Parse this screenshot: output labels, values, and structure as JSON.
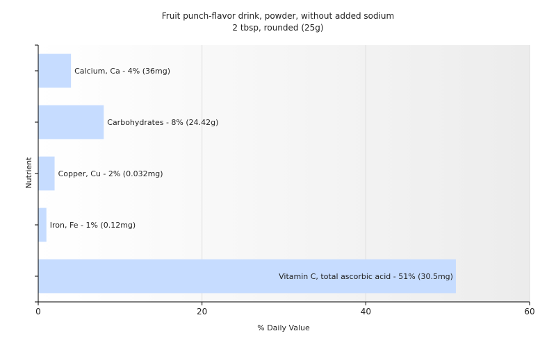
{
  "chart_data": {
    "type": "bar",
    "orientation": "horizontal",
    "title": "Fruit punch-flavor drink, powder, without added sodium",
    "subtitle": "2 tbsp, rounded (25g)",
    "xlabel": "% Daily Value",
    "ylabel": "Nutrient",
    "xlim": [
      0,
      60
    ],
    "xticks": [
      "0",
      "20",
      "40",
      "60"
    ],
    "grid": true,
    "categories": [
      "Calcium, Ca",
      "Carbohydrates",
      "Copper, Cu",
      "Iron, Fe",
      "Vitamin C, total ascorbic acid"
    ],
    "values": [
      4,
      8,
      2,
      1,
      51
    ],
    "data_labels": [
      "Calcium, Ca - 4% (36mg)",
      "Carbohydrates - 8% (24.42g)",
      "Copper, Cu - 2% (0.032mg)",
      "Iron, Fe - 1% (0.12mg)",
      "Vitamin C, total ascorbic acid - 51% (30.5mg)"
    ],
    "colors": {
      "bar": "#c6dcff",
      "axis": "#000000",
      "grid": "#dddddd",
      "plot_bg_left": "#ffffff",
      "plot_bg_right": "#ececec"
    }
  }
}
